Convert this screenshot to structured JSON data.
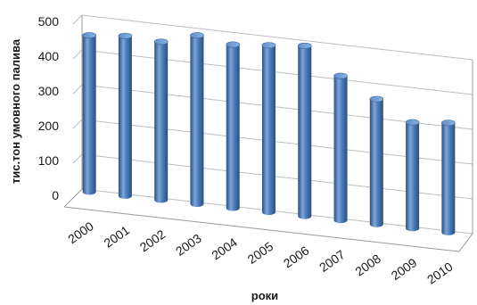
{
  "chart_data": {
    "type": "bar",
    "style": "3d-cylinder",
    "title": "",
    "xlabel": "роки",
    "ylabel": "тис.тон умовного палива",
    "categories": [
      "2000",
      "2001",
      "2002",
      "2003",
      "2004",
      "2005",
      "2006",
      "2007",
      "2008",
      "2009",
      "2010"
    ],
    "values": [
      450,
      460,
      455,
      485,
      470,
      480,
      490,
      415,
      360,
      305,
      315
    ],
    "ylim": [
      0,
      500
    ],
    "yticks": [
      "0",
      "100",
      "200",
      "300",
      "400",
      "500"
    ],
    "grid": true,
    "legend": "none",
    "bar_color": "#4A7EBB",
    "bar_dark": "#2B4F80",
    "bar_light": "#7FA6DB"
  }
}
